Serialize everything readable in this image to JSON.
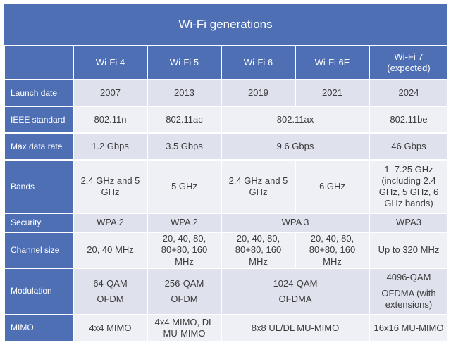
{
  "title": "Wi-Fi generations",
  "columns": [
    "Wi-Fi 4",
    "Wi-Fi 5",
    "Wi-Fi 6",
    "Wi-Fi 6E",
    "Wi-Fi 7 (expected)"
  ],
  "rows": {
    "launch_date": {
      "label": "Launch date",
      "values": [
        "2007",
        "2013",
        "2019",
        "2021",
        "2024"
      ]
    },
    "ieee_standard": {
      "label": "IEEE standard",
      "values": [
        "802.11n",
        "802.11ac",
        "802.11ax",
        "802.11be"
      ]
    },
    "max_data_rate": {
      "label": "Max data rate",
      "values": [
        "1.2 Gbps",
        "3.5 Gbps",
        "9.6 Gbps",
        "46 Gbps"
      ]
    },
    "bands": {
      "label": "Bands",
      "values": [
        "2.4 GHz and 5 GHz",
        "5 GHz",
        "2.4 GHz and 5 GHz",
        "6 GHz",
        "1–7.25 GHz (including 2.4 GHz, 5 GHz, 6 GHz bands)"
      ]
    },
    "security": {
      "label": "Security",
      "values": [
        "WPA 2",
        "WPA 2",
        "WPA 3",
        "WPA3"
      ]
    },
    "channel_size": {
      "label": "Channel size",
      "values": [
        "20, 40 MHz",
        "20, 40, 80, 80+80, 160 MHz",
        "20, 40, 80, 80+80, 160 MHz",
        "20, 40, 80, 80+80, 160 MHz",
        "Up to 320 MHz"
      ]
    },
    "modulation": {
      "label": "Modulation",
      "values": [
        [
          "64-QAM",
          "OFDM"
        ],
        [
          "256-QAM",
          "OFDM"
        ],
        [
          "1024-QAM",
          "OFDMA"
        ],
        [
          "4096-QAM",
          "OFDMA (with extensions)"
        ]
      ]
    },
    "mimo": {
      "label": "MIMO",
      "values": [
        "4x4 MIMO",
        "4x4 MIMO, DL MU-MIMO",
        "8x8 UL/DL MU-MIMO",
        "16x16 MU-MIMO"
      ]
    }
  }
}
